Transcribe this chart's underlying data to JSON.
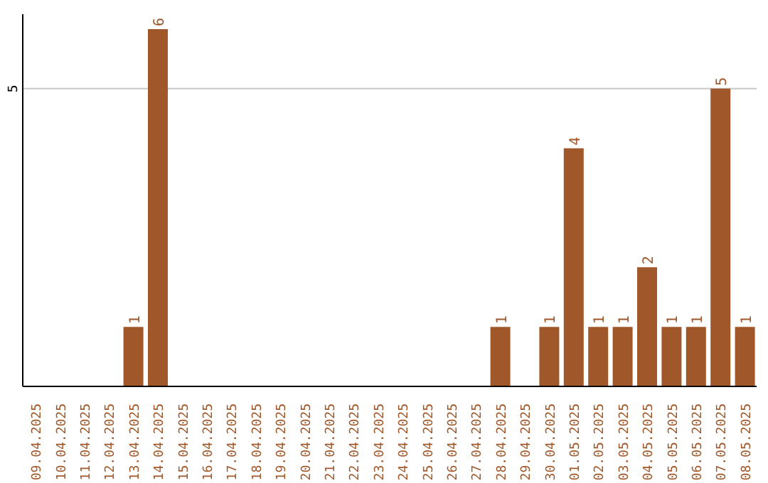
{
  "chart_data": {
    "type": "bar",
    "categories": [
      "09.04.2025",
      "10.04.2025",
      "11.04.2025",
      "12.04.2025",
      "13.04.2025",
      "14.04.2025",
      "15.04.2025",
      "16.04.2025",
      "17.04.2025",
      "18.04.2025",
      "19.04.2025",
      "20.04.2025",
      "21.04.2025",
      "22.04.2025",
      "23.04.2025",
      "24.04.2025",
      "25.04.2025",
      "26.04.2025",
      "27.04.2025",
      "28.04.2025",
      "29.04.2025",
      "30.04.2025",
      "01.05.2025",
      "02.05.2025",
      "03.05.2025",
      "04.05.2025",
      "05.05.2025",
      "06.05.2025",
      "07.05.2025",
      "08.05.2025"
    ],
    "values": [
      0,
      0,
      0,
      0,
      1,
      6,
      0,
      0,
      0,
      0,
      0,
      0,
      0,
      0,
      0,
      0,
      0,
      0,
      0,
      1,
      0,
      1,
      4,
      1,
      1,
      2,
      1,
      1,
      5,
      1
    ],
    "value_labels": [
      null,
      null,
      null,
      null,
      "1",
      "6",
      null,
      null,
      null,
      null,
      null,
      null,
      null,
      null,
      null,
      null,
      null,
      null,
      null,
      "1",
      null,
      "1",
      "4",
      "1",
      "1",
      "2",
      "1",
      "1",
      "5",
      "1"
    ],
    "color": "#a0582a",
    "ylim": [
      0,
      6.25
    ],
    "yticks": [
      5
    ],
    "grid": "y"
  }
}
